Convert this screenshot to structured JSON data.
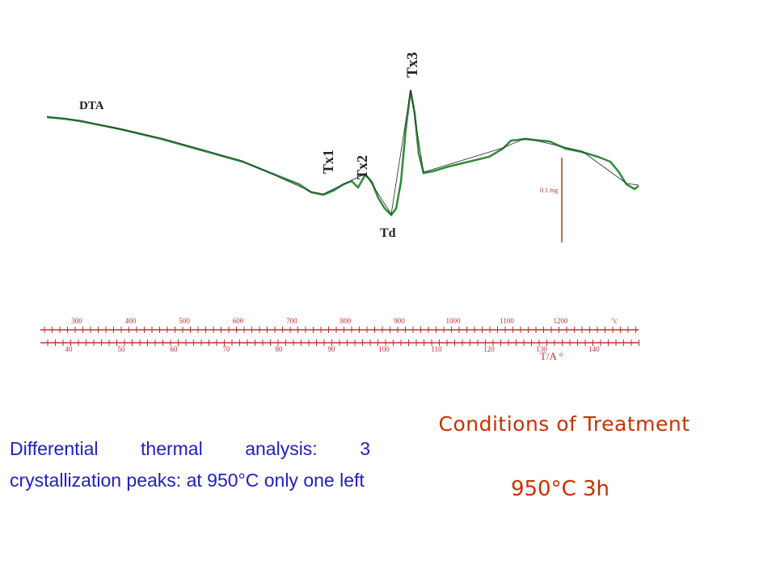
{
  "figure": {
    "curve_label": "DTA",
    "peaks": [
      "Tx1",
      "Tx2",
      "Tx3",
      "Td"
    ],
    "scale_label": "0.1 mg",
    "upper_ticks": [
      "300",
      "400",
      "500",
      "600",
      "700",
      "800",
      "900",
      "1000",
      "1100",
      "1200",
      "°c"
    ],
    "lower_ticks": [
      "40",
      "50",
      "60",
      "70",
      "80",
      "90",
      "100",
      "110",
      "120",
      "130",
      "140"
    ],
    "lower_axis_label": "T/A °"
  },
  "slide": {
    "description": "Differential thermal analysis:  3 crystallization peaks:  at 950°C only one left",
    "heading": "Conditions  of Treatment",
    "condition": "950°C 3h"
  }
}
